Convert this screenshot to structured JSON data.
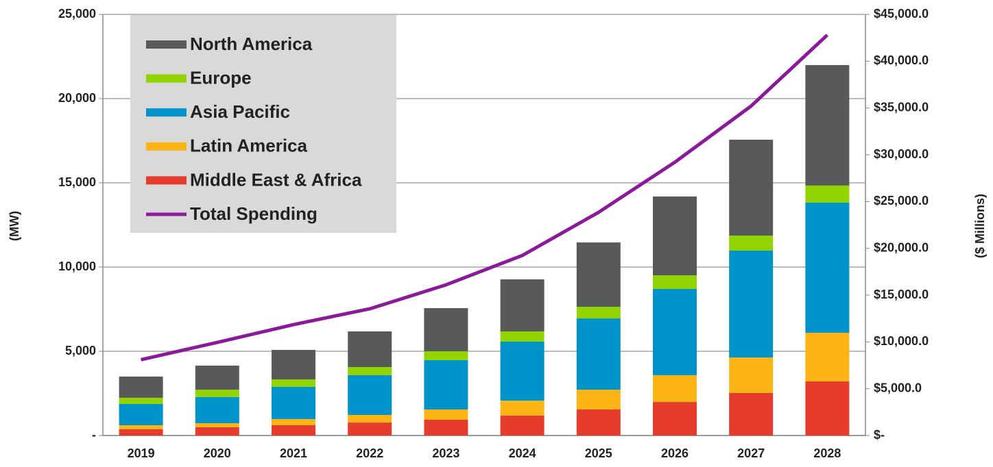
{
  "chart_data": {
    "type": "bar",
    "stacked": true,
    "categories": [
      "2019",
      "2020",
      "2021",
      "2022",
      "2023",
      "2024",
      "2025",
      "2026",
      "2027",
      "2028"
    ],
    "series": [
      {
        "name": "Middle East & Africa",
        "color": "#e53c2e",
        "values": [
          370,
          490,
          610,
          770,
          935,
          1180,
          1545,
          1990,
          2520,
          3210
        ]
      },
      {
        "name": "Latin America",
        "color": "#fdb515",
        "values": [
          240,
          240,
          365,
          450,
          610,
          890,
          1175,
          1590,
          2110,
          2890
        ]
      },
      {
        "name": "Asia Pacific",
        "color": "#0093c9",
        "values": [
          1260,
          1550,
          1915,
          2360,
          2925,
          3500,
          4230,
          5120,
          6350,
          7720
        ]
      },
      {
        "name": "Europe",
        "color": "#92d400",
        "values": [
          370,
          440,
          440,
          485,
          530,
          610,
          690,
          810,
          890,
          1020
        ]
      },
      {
        "name": "North America",
        "color": "#58595b",
        "values": [
          1260,
          1430,
          1750,
          2115,
          2560,
          3090,
          3820,
          4680,
          5690,
          7150
        ]
      },
      {
        "name": "Total Spending",
        "color": "#8b1a9b",
        "type": "line",
        "axis": "y2",
        "values": [
          8100,
          9950,
          11850,
          13540,
          16100,
          19240,
          23850,
          29200,
          35200,
          42800
        ]
      }
    ],
    "ylabel": "(MW)",
    "y2label": "($ Millions)",
    "ylim": [
      0,
      25000
    ],
    "yticks": [
      {
        "value": 0,
        "label": "-"
      },
      {
        "value": 5000,
        "label": "5,000"
      },
      {
        "value": 10000,
        "label": "10,000"
      },
      {
        "value": 15000,
        "label": "15,000"
      },
      {
        "value": 20000,
        "label": "20,000"
      },
      {
        "value": 25000,
        "label": "25,000"
      }
    ],
    "y2lim": [
      0,
      45000
    ],
    "y2ticks": [
      {
        "value": 0,
        "label": "$-"
      },
      {
        "value": 5000,
        "label": "$5,000.0"
      },
      {
        "value": 10000,
        "label": "$10,000.0"
      },
      {
        "value": 15000,
        "label": "$15,000.0"
      },
      {
        "value": 20000,
        "label": "$20,000.0"
      },
      {
        "value": 25000,
        "label": "$25,000.0"
      },
      {
        "value": 30000,
        "label": "$30,000.0"
      },
      {
        "value": 35000,
        "label": "$35,000.0"
      },
      {
        "value": 40000,
        "label": "$40,000.0"
      },
      {
        "value": 45000,
        "label": "$45,000.0"
      }
    ],
    "grid": true,
    "legend": "upper left"
  }
}
